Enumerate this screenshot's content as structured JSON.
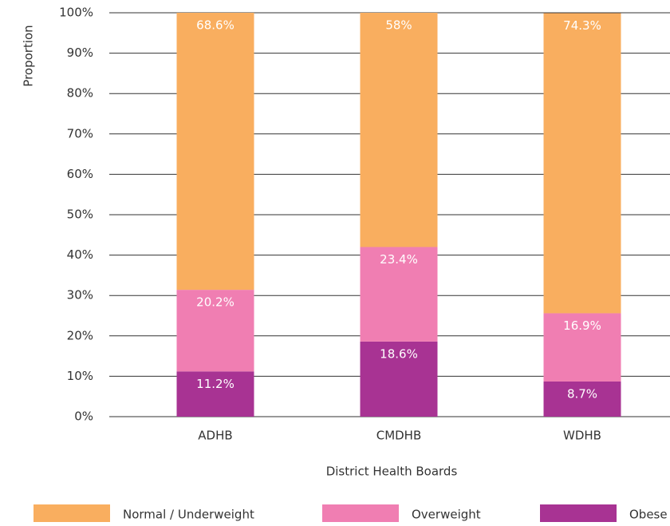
{
  "chart_data": {
    "type": "stacked_bar",
    "x_label": "District Health Boards",
    "y_label": "Proportion",
    "categories": [
      "ADHB",
      "CMDHB",
      "WDHB"
    ],
    "series": [
      {
        "name": "Normal  / Underweight",
        "color": "#f9ae5f",
        "values": [
          68.6,
          58,
          74.3
        ],
        "value_labels": [
          "68.6%",
          "58%",
          "74.3%"
        ]
      },
      {
        "name": "Overweight",
        "color": "#f07eb2",
        "values": [
          20.2,
          23.4,
          16.9
        ],
        "value_labels": [
          "20.2%",
          "23.4%",
          "16.9%"
        ]
      },
      {
        "name": "Obese",
        "color": "#a83393",
        "values": [
          11.2,
          18.6,
          8.7
        ],
        "value_labels": [
          "11.2%",
          "18.6%",
          "8.7%"
        ]
      }
    ],
    "ylim": [
      0,
      100
    ],
    "yticks": [
      {
        "value": 0,
        "label": "0%"
      },
      {
        "value": 10,
        "label": "10%"
      },
      {
        "value": 20,
        "label": "20%"
      },
      {
        "value": 30,
        "label": "30%"
      },
      {
        "value": 40,
        "label": "40%"
      },
      {
        "value": 50,
        "label": "50%"
      },
      {
        "value": 60,
        "label": "60%"
      },
      {
        "value": 70,
        "label": "70%"
      },
      {
        "value": 80,
        "label": "80%"
      },
      {
        "value": 90,
        "label": "90%"
      },
      {
        "value": 100,
        "label": "100%"
      }
    ],
    "grid": true,
    "legend": "bottom"
  }
}
